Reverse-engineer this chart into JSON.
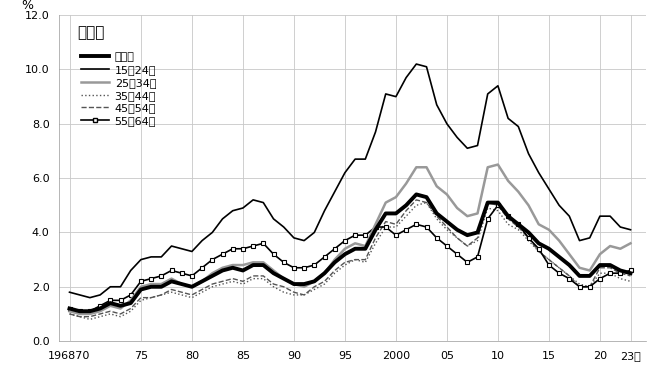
{
  "title": "男女計",
  "ylabel": "%",
  "ylim": [
    0.0,
    12.0
  ],
  "yticks": [
    0.0,
    2.0,
    4.0,
    6.0,
    8.0,
    10.0,
    12.0
  ],
  "xtick_labels": [
    "196870",
    "75",
    "80",
    "85",
    "90",
    "95",
    "2000",
    "05",
    "10",
    "15",
    "20",
    "23年"
  ],
  "xtick_positions": [
    1968,
    1975,
    1980,
    1985,
    1990,
    1995,
    2000,
    2005,
    2010,
    2015,
    2020,
    2023
  ],
  "years": [
    1968,
    1969,
    1970,
    1971,
    1972,
    1973,
    1974,
    1975,
    1976,
    1977,
    1978,
    1979,
    1980,
    1981,
    1982,
    1983,
    1984,
    1985,
    1986,
    1987,
    1988,
    1989,
    1990,
    1991,
    1992,
    1993,
    1994,
    1995,
    1996,
    1997,
    1998,
    1999,
    2000,
    2001,
    2002,
    2003,
    2004,
    2005,
    2006,
    2007,
    2008,
    2009,
    2010,
    2011,
    2012,
    2013,
    2014,
    2015,
    2016,
    2017,
    2018,
    2019,
    2020,
    2021,
    2022,
    2023
  ],
  "nenreikei": [
    1.2,
    1.1,
    1.1,
    1.2,
    1.4,
    1.3,
    1.4,
    1.9,
    2.0,
    2.0,
    2.2,
    2.1,
    2.0,
    2.2,
    2.4,
    2.6,
    2.7,
    2.6,
    2.8,
    2.8,
    2.5,
    2.3,
    2.1,
    2.1,
    2.2,
    2.5,
    2.9,
    3.2,
    3.4,
    3.4,
    4.1,
    4.7,
    4.7,
    5.0,
    5.4,
    5.3,
    4.7,
    4.4,
    4.1,
    3.9,
    4.0,
    5.1,
    5.1,
    4.6,
    4.3,
    4.0,
    3.6,
    3.4,
    3.1,
    2.8,
    2.4,
    2.4,
    2.8,
    2.8,
    2.6,
    2.5
  ],
  "age15_24": [
    1.8,
    1.7,
    1.6,
    1.7,
    2.0,
    2.0,
    2.6,
    3.0,
    3.1,
    3.1,
    3.5,
    3.4,
    3.3,
    3.7,
    4.0,
    4.5,
    4.8,
    4.9,
    5.2,
    5.1,
    4.5,
    4.2,
    3.8,
    3.7,
    4.0,
    4.8,
    5.5,
    6.2,
    6.7,
    6.7,
    7.7,
    9.1,
    9.0,
    9.7,
    10.2,
    10.1,
    8.7,
    8.0,
    7.5,
    7.1,
    7.2,
    9.1,
    9.4,
    8.2,
    7.9,
    6.9,
    6.2,
    5.6,
    5.0,
    4.6,
    3.7,
    3.8,
    4.6,
    4.6,
    4.2,
    4.1
  ],
  "age25_34": [
    1.1,
    1.0,
    1.0,
    1.1,
    1.3,
    1.2,
    1.5,
    2.0,
    2.1,
    2.1,
    2.3,
    2.1,
    2.0,
    2.2,
    2.5,
    2.7,
    2.8,
    2.8,
    2.9,
    2.9,
    2.6,
    2.3,
    2.1,
    2.0,
    2.2,
    2.5,
    3.0,
    3.4,
    3.6,
    3.5,
    4.3,
    5.1,
    5.3,
    5.8,
    6.4,
    6.4,
    5.7,
    5.4,
    4.9,
    4.6,
    4.7,
    6.4,
    6.5,
    5.9,
    5.5,
    5.0,
    4.3,
    4.1,
    3.7,
    3.2,
    2.7,
    2.6,
    3.2,
    3.5,
    3.4,
    3.6
  ],
  "age35_44": [
    1.0,
    0.9,
    0.8,
    0.9,
    1.0,
    0.9,
    1.1,
    1.5,
    1.6,
    1.7,
    1.8,
    1.7,
    1.6,
    1.8,
    2.0,
    2.1,
    2.2,
    2.1,
    2.3,
    2.3,
    2.0,
    1.8,
    1.7,
    1.7,
    1.9,
    2.1,
    2.5,
    2.8,
    3.0,
    2.9,
    3.6,
    4.2,
    4.2,
    4.6,
    5.0,
    5.1,
    4.5,
    4.1,
    3.8,
    3.5,
    3.7,
    4.9,
    4.8,
    4.3,
    4.1,
    3.7,
    3.3,
    3.0,
    2.7,
    2.4,
    2.1,
    2.0,
    2.5,
    2.5,
    2.3,
    2.2
  ],
  "age45_54": [
    1.0,
    0.9,
    0.9,
    1.0,
    1.1,
    1.0,
    1.2,
    1.6,
    1.6,
    1.7,
    1.9,
    1.8,
    1.7,
    1.9,
    2.1,
    2.2,
    2.3,
    2.2,
    2.4,
    2.4,
    2.1,
    2.0,
    1.8,
    1.7,
    2.0,
    2.2,
    2.6,
    2.9,
    3.0,
    3.0,
    3.8,
    4.4,
    4.3,
    4.8,
    5.2,
    5.1,
    4.6,
    4.2,
    3.8,
    3.5,
    3.8,
    5.1,
    5.0,
    4.5,
    4.2,
    3.8,
    3.3,
    3.0,
    2.7,
    2.4,
    2.0,
    2.0,
    2.7,
    2.7,
    2.5,
    2.4
  ],
  "age55_64": [
    1.2,
    1.1,
    1.1,
    1.3,
    1.5,
    1.5,
    1.7,
    2.2,
    2.3,
    2.4,
    2.6,
    2.5,
    2.4,
    2.7,
    3.0,
    3.2,
    3.4,
    3.4,
    3.5,
    3.6,
    3.2,
    2.9,
    2.7,
    2.7,
    2.8,
    3.1,
    3.4,
    3.7,
    3.9,
    3.9,
    4.2,
    4.2,
    3.9,
    4.1,
    4.3,
    4.2,
    3.8,
    3.5,
    3.2,
    2.9,
    3.1,
    4.5,
    5.0,
    4.6,
    4.3,
    3.8,
    3.4,
    2.8,
    2.5,
    2.3,
    2.0,
    2.0,
    2.3,
    2.5,
    2.5,
    2.6
  ],
  "bg_color": "#ffffff",
  "grid_color": "#c8c8c8",
  "legend_labels": [
    "年齢計",
    "15～24歳",
    "25～34歳",
    "35～44歳",
    "45～54歳",
    "55～64歳"
  ]
}
